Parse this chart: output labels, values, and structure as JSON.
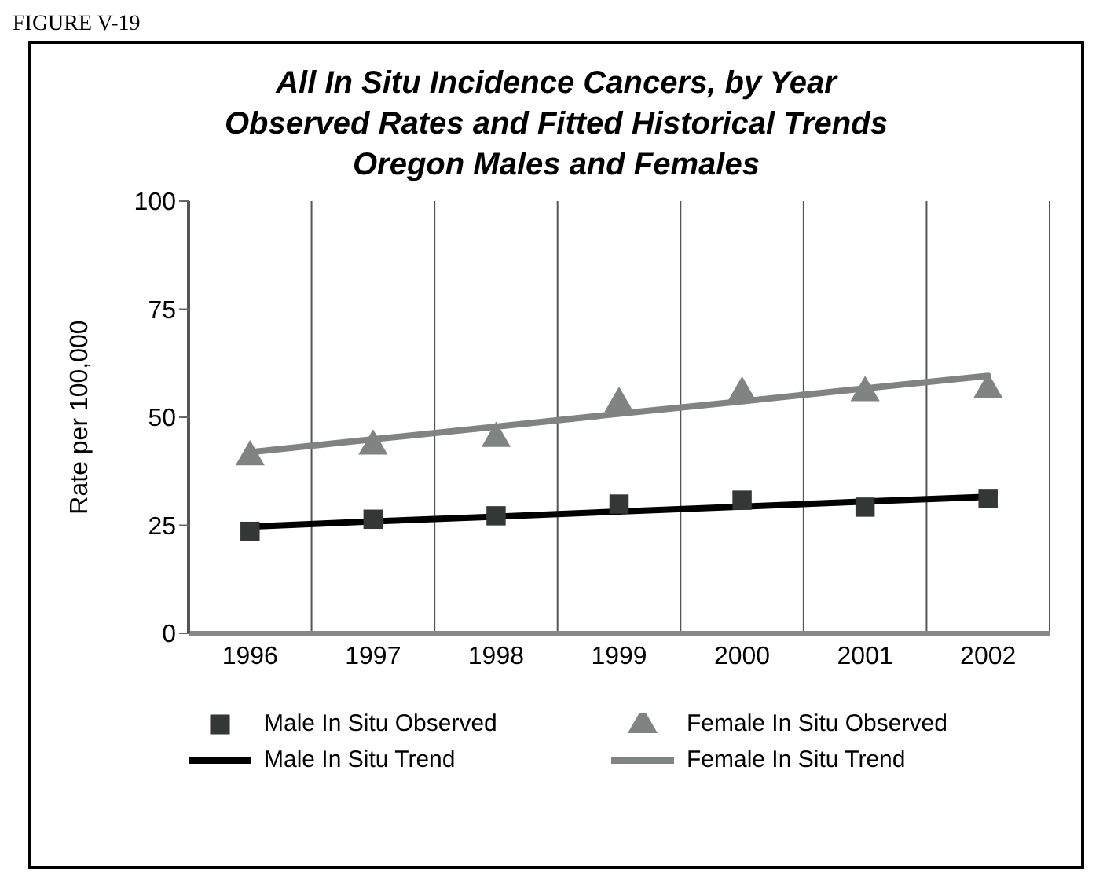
{
  "chart_data": {
    "type": "scatter",
    "title": "All In Situ Incidence Cancers, by Year",
    "subtitle": "Observed Rates and Fitted Historical Trends\nOregon Males and Females",
    "annotations": [
      "FIGURE V-19"
    ],
    "ylabel": "Rate per 100,000",
    "categories": [
      "1996",
      "1997",
      "1998",
      "1999",
      "2000",
      "2001",
      "2002"
    ],
    "ylim": [
      0,
      100
    ],
    "yticks": [
      0,
      25,
      50,
      75,
      100
    ],
    "grid": "x",
    "legend": "bottom",
    "series": [
      {
        "name": "Male In Situ Observed",
        "marker": "square",
        "color": "#333836",
        "values": [
          23.6,
          26.4,
          27.2,
          29.9,
          30.8,
          29.2,
          31.2
        ]
      },
      {
        "name": "Female In Situ Observed",
        "marker": "triangle",
        "color": "#7f8483",
        "values": [
          40.8,
          43.3,
          45.1,
          53.2,
          55.6,
          55.7,
          56.4
        ]
      },
      {
        "name": "Male In Situ Trend",
        "type": "line",
        "marker": "none",
        "color": "#000000",
        "values": [
          24.7,
          25.9,
          27.0,
          28.2,
          29.3,
          30.5,
          31.6
        ]
      },
      {
        "name": "Female In Situ Trend",
        "type": "line",
        "marker": "none",
        "color": "#7f8483",
        "values": [
          41.9,
          44.9,
          47.8,
          50.8,
          53.7,
          56.7,
          59.6
        ]
      }
    ]
  }
}
